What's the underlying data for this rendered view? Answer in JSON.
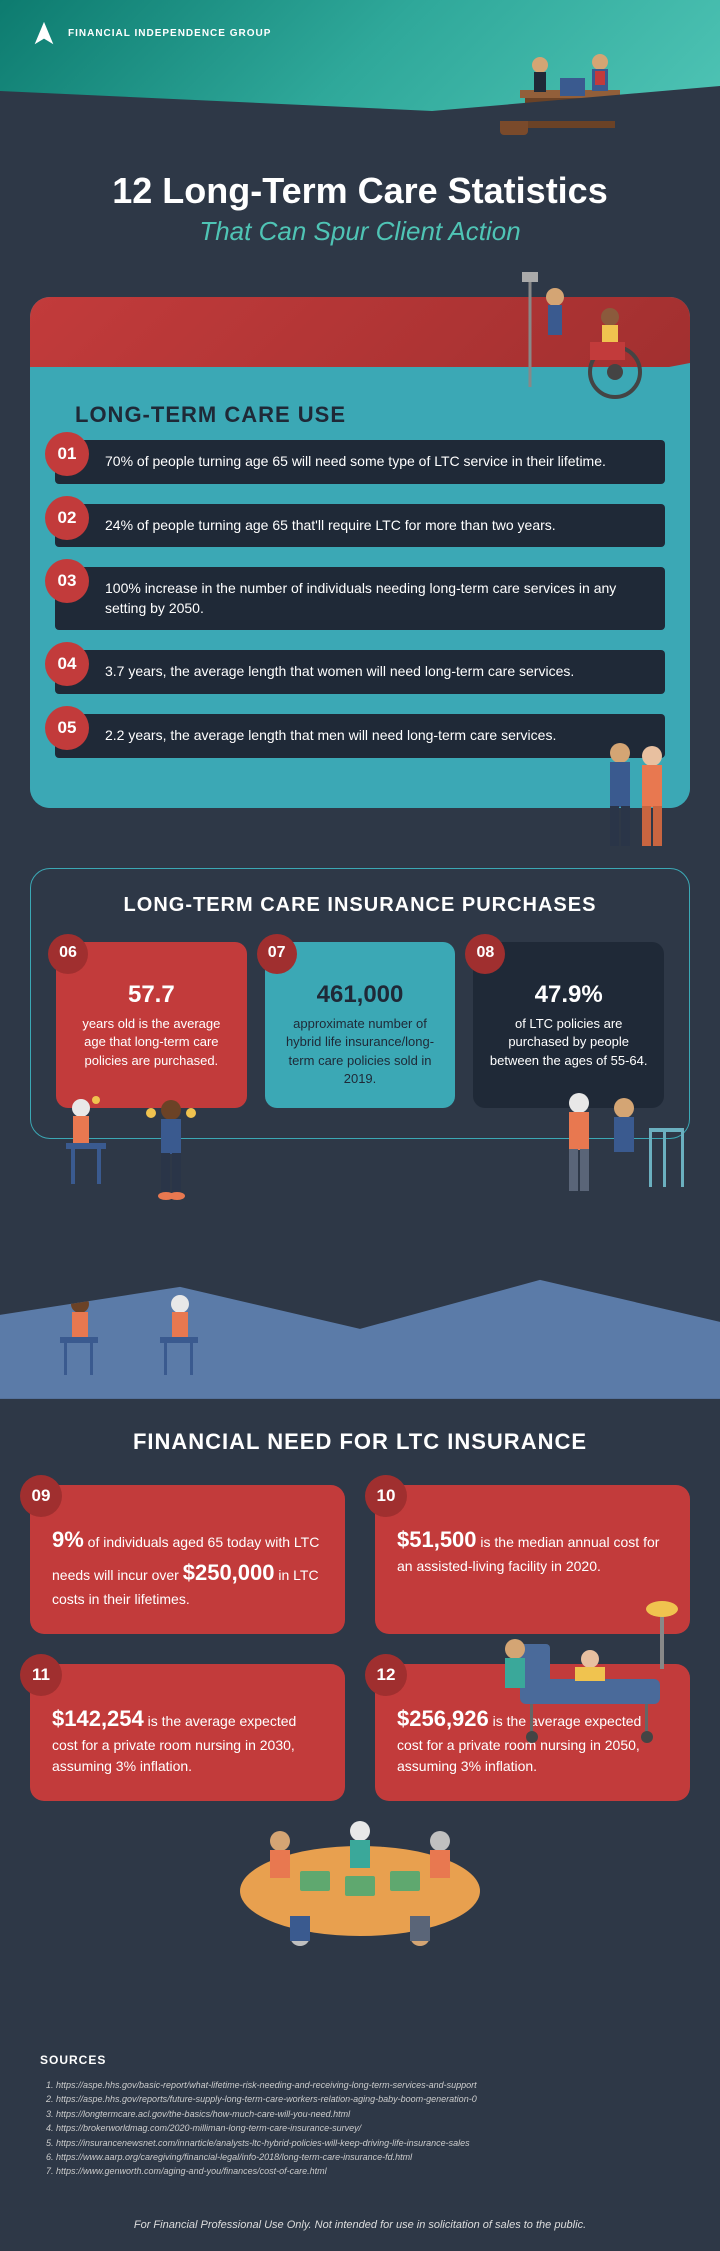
{
  "colors": {
    "bg": "#2e3847",
    "teal": "#3ba8b5",
    "teal_light": "#4fc4b5",
    "red": "#c23b3b",
    "red_dark": "#a02f2f",
    "dark": "#1f2937",
    "blue_wave": "#5b7ba8"
  },
  "header": {
    "brand": "FINANCIAL\nINDEPENDENCE\nGROUP"
  },
  "title": {
    "main": "12 Long-Term Care Statistics",
    "sub": "That Can Spur Client Action"
  },
  "section1": {
    "title": "LONG-TERM CARE USE",
    "items": [
      {
        "num": "01",
        "text": "70% of people turning age 65 will need some type of LTC service in their lifetime."
      },
      {
        "num": "02",
        "text": "24% of people turning age 65 that'll require LTC for more than two years."
      },
      {
        "num": "03",
        "text": "100% increase in the number of individuals needing long-term care services in any setting by 2050."
      },
      {
        "num": "04",
        "text": "3.7 years, the average length that women will need long-term care services."
      },
      {
        "num": "05",
        "text": "2.2 years, the average length that men will need long-term care services."
      }
    ]
  },
  "section2": {
    "title": "LONG-TERM CARE INSURANCE PURCHASES",
    "cards": [
      {
        "num": "06",
        "big": "57.7",
        "text": "years old is the average age that long-term care policies are purchased.",
        "style": "red"
      },
      {
        "num": "07",
        "big": "461,000",
        "text": "approximate number of hybrid life insurance/long-term care policies sold in 2019.",
        "style": "teal"
      },
      {
        "num": "08",
        "big": "47.9%",
        "text": "of LTC policies are purchased by people between the ages of 55-64.",
        "style": "dark"
      }
    ]
  },
  "section3": {
    "title": "FINANCIAL NEED FOR LTC INSURANCE",
    "cards": [
      {
        "num": "09",
        "html": "<span class='big'>9%</span> of individuals aged 65 today with LTC needs will incur over <span class='big'>$250,000</span> in LTC costs in their lifetimes."
      },
      {
        "num": "10",
        "html": "<span class='big'>$51,500</span> is the median annual cost for an assisted-living facility in 2020."
      },
      {
        "num": "11",
        "html": "<span class='big'>$142,254</span> is the average expected cost for a private room nursing in 2030, assuming 3% inflation."
      },
      {
        "num": "12",
        "html": "<span class='big'>$256,926</span> is the average expected cost for a private room nursing in 2050, assuming 3% inflation."
      }
    ]
  },
  "sources": {
    "title": "SOURCES",
    "list": [
      "https://aspe.hhs.gov/basic-report/what-lifetime-risk-needing-and-receiving-long-term-services-and-support",
      "https://aspe.hhs.gov/reports/future-supply-long-term-care-workers-relation-aging-baby-boom-generation-0",
      "https://longtermcare.acl.gov/the-basics/how-much-care-will-you-need.html",
      "https://brokerworldmag.com/2020-milliman-long-term-care-insurance-survey/",
      "https://insurancenewsnet.com/innarticle/analysts-ltc-hybrid-policies-will-keep-driving-life-insurance-sales",
      "https://www.aarp.org/caregiving/financial-legal/info-2018/long-term-care-insurance-fd.html",
      "https://www.genworth.com/aging-and-you/finances/cost-of-care.html"
    ]
  },
  "disclaimer": "For Financial Professional Use Only. Not intended for use in solicitation of sales to the public."
}
